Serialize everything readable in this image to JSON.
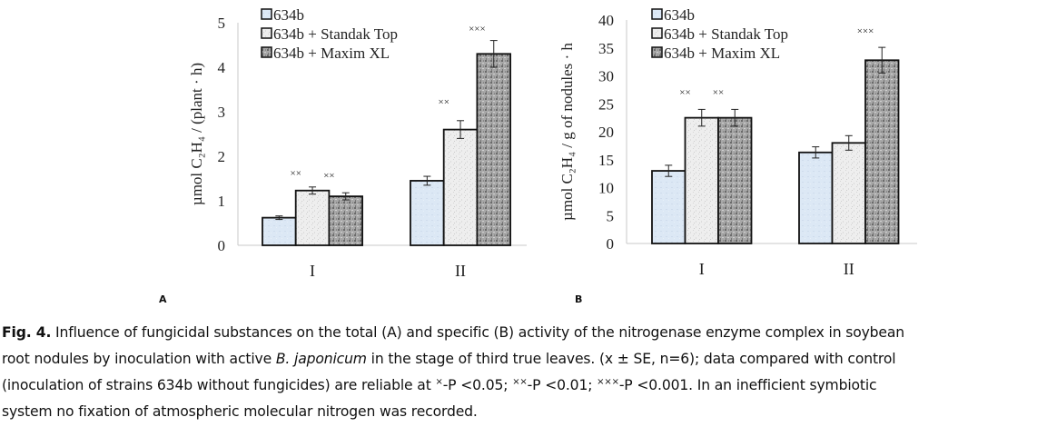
{
  "chart_data": [
    {
      "type": "bar",
      "panel": "A",
      "categories": [
        "I",
        "II"
      ],
      "ylabel": "µmol C₂H₄ / (plant · h)",
      "ylim": [
        0,
        5
      ],
      "yticks": [
        0,
        1,
        2,
        3,
        4,
        5
      ],
      "grid": false,
      "legend": "top-left",
      "series": [
        {
          "name": "634b",
          "values": [
            0.62,
            1.45
          ],
          "errors": [
            0.04,
            0.1
          ],
          "color": "#dce8f5",
          "pattern": "light-blue"
        },
        {
          "name": "634b + Standak Top",
          "values": [
            1.23,
            2.6
          ],
          "errors": [
            0.08,
            0.2
          ],
          "color": "#ececec",
          "pattern": "light-grey-speckle"
        },
        {
          "name": "634b + Maxim XL",
          "values": [
            1.1,
            4.3
          ],
          "errors": [
            0.08,
            0.3
          ],
          "color": "#9a9a9a",
          "pattern": "dark-grey-speckle"
        }
      ],
      "annotations": [
        {
          "text": "××",
          "category": "I",
          "series": 0,
          "y": 1.55
        },
        {
          "text": "××",
          "category": "I",
          "series": 1,
          "y": 1.5
        },
        {
          "text": "××",
          "category": "II",
          "series": 0,
          "y": 3.15
        },
        {
          "text": "×××",
          "category": "II",
          "series": 1,
          "y": 4.8
        }
      ]
    },
    {
      "type": "bar",
      "panel": "B",
      "categories": [
        "I",
        "II"
      ],
      "ylabel": "µmol C₂H₄ / g of nodules · h",
      "ylim": [
        0,
        40
      ],
      "yticks": [
        0,
        5,
        10,
        15,
        20,
        25,
        30,
        35,
        40
      ],
      "grid": false,
      "legend": "top-left",
      "series": [
        {
          "name": "634b",
          "values": [
            13,
            16.3
          ],
          "errors": [
            1,
            1
          ],
          "color": "#dce8f5",
          "pattern": "light-blue"
        },
        {
          "name": "634b + Standak Top",
          "values": [
            22.5,
            18
          ],
          "errors": [
            1.5,
            1.3
          ],
          "color": "#ececec",
          "pattern": "light-grey-speckle"
        },
        {
          "name": "634b + Maxim XL",
          "values": [
            22.5,
            32.8
          ],
          "errors": [
            1.5,
            2.3
          ],
          "color": "#9a9a9a",
          "pattern": "dark-grey-speckle"
        }
      ],
      "annotations": [
        {
          "text": "××",
          "category": "I",
          "series": 0,
          "y": 26.5
        },
        {
          "text": "××",
          "category": "I",
          "series": 1,
          "y": 26.5
        },
        {
          "text": "×××",
          "category": "II",
          "series": 1,
          "y": 37.5
        }
      ]
    }
  ],
  "caption": {
    "lines": [
      [
        {
          "b": "Fig. 4."
        },
        {
          "t": " Influence of fungicidal substances on the total (A) and specific (B) activity of the nitrogenase enzyme complex in soybean"
        }
      ],
      [
        {
          "t": "root nodules by inoculation with active "
        },
        {
          "i": "B. japonicum"
        },
        {
          "t": " in the stage of third true leaves. (x ± SE, n=6); data compared with control"
        }
      ],
      [
        {
          "t": "(inoculation of strains 634b without fungicides) are reliable at "
        },
        {
          "s": "×"
        },
        {
          "t": "-P <0.05; "
        },
        {
          "s": "××"
        },
        {
          "t": "-P <0.01; "
        },
        {
          "s": "×××"
        },
        {
          "t": "-P <0.001. In an inefficient symbiotic"
        }
      ],
      [
        {
          "t": "system no fixation of atmospheric molecular nitrogen was recorded."
        }
      ]
    ]
  }
}
